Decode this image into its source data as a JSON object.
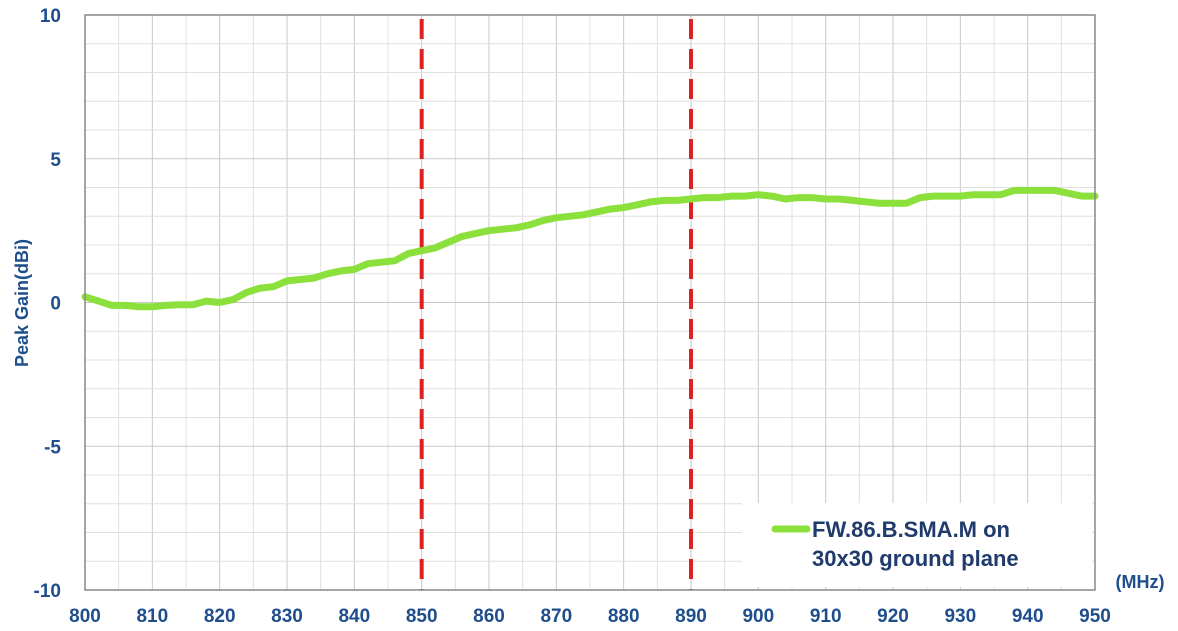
{
  "chart_data": {
    "type": "line",
    "title": "",
    "ylabel": "Peak Gain(dBi)",
    "x_unit_label": "(MHz)",
    "xlim": [
      800,
      950
    ],
    "ylim": [
      -10,
      10
    ],
    "x_major_step": 10,
    "x_minor_step": 5,
    "y_major_step": 5,
    "y_minor_step": 1,
    "grid": true,
    "legend_position": "bottom-right",
    "x_tick_labels": [
      "800",
      "810",
      "820",
      "830",
      "840",
      "850",
      "860",
      "870",
      "880",
      "890",
      "900",
      "910",
      "920",
      "930",
      "940",
      "950"
    ],
    "y_tick_labels": [
      "10",
      "5",
      "0",
      "-5",
      "-10"
    ],
    "series": [
      {
        "name": "FW.86.B.SMA.M on 30x30 ground plane",
        "legend_lines": [
          "FW.86.B.SMA.M on",
          "30x30 ground plane"
        ],
        "color": "#8be03c",
        "x": [
          800,
          802,
          804,
          806,
          808,
          810,
          812,
          814,
          816,
          818,
          820,
          822,
          824,
          826,
          828,
          830,
          832,
          834,
          836,
          838,
          840,
          842,
          844,
          846,
          848,
          850,
          852,
          854,
          856,
          858,
          860,
          862,
          864,
          866,
          868,
          870,
          872,
          874,
          876,
          878,
          880,
          882,
          884,
          886,
          888,
          890,
          892,
          894,
          896,
          898,
          900,
          902,
          904,
          906,
          908,
          910,
          912,
          914,
          916,
          918,
          920,
          922,
          924,
          926,
          928,
          930,
          932,
          934,
          936,
          938,
          940,
          942,
          944,
          946,
          948,
          950
        ],
        "y": [
          0.2,
          0.05,
          -0.1,
          -0.1,
          -0.15,
          -0.15,
          -0.1,
          -0.08,
          -0.08,
          0.05,
          0.0,
          0.1,
          0.35,
          0.5,
          0.55,
          0.75,
          0.8,
          0.85,
          1.0,
          1.1,
          1.15,
          1.35,
          1.4,
          1.45,
          1.7,
          1.8,
          1.9,
          2.1,
          2.3,
          2.4,
          2.5,
          2.55,
          2.6,
          2.7,
          2.85,
          2.95,
          3.0,
          3.05,
          3.15,
          3.25,
          3.3,
          3.4,
          3.5,
          3.55,
          3.55,
          3.6,
          3.65,
          3.65,
          3.7,
          3.7,
          3.75,
          3.7,
          3.6,
          3.65,
          3.65,
          3.6,
          3.6,
          3.55,
          3.5,
          3.45,
          3.45,
          3.45,
          3.65,
          3.7,
          3.7,
          3.7,
          3.75,
          3.75,
          3.75,
          3.9,
          3.9,
          3.9,
          3.9,
          3.8,
          3.7,
          3.7
        ]
      }
    ],
    "reference_lines": [
      {
        "x": 850,
        "color": "#e02020",
        "style": "dashed"
      },
      {
        "x": 890,
        "color": "#e02020",
        "style": "dashed"
      }
    ],
    "tick_color": "#1f4e8c"
  }
}
